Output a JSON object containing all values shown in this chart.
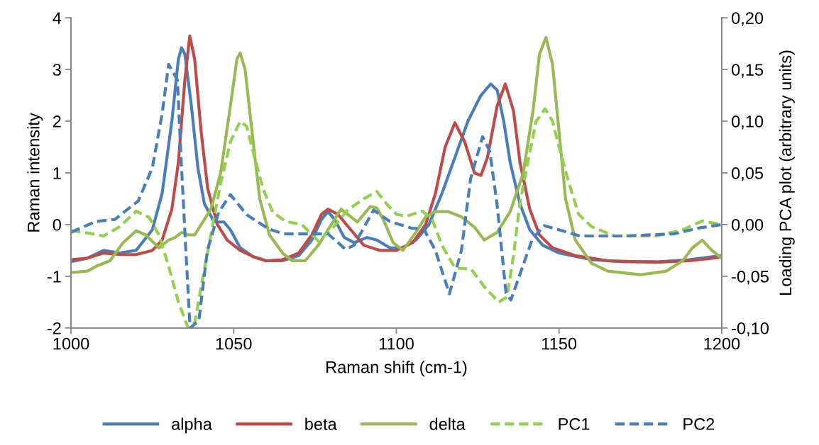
{
  "chart_data": {
    "type": "line",
    "xlabel": "Raman shift (cm-1)",
    "ylabel": "Raman intensity",
    "y2label": "Loading PCA plot (arbitrary units)",
    "xlim": [
      1000,
      1200
    ],
    "xticks": [
      1000,
      1050,
      1100,
      1150,
      1200
    ],
    "ylim": [
      -2,
      4
    ],
    "yticks": [
      -2,
      -1,
      0,
      1,
      2,
      3,
      4
    ],
    "y2lim": [
      -0.1,
      0.2
    ],
    "y2ticks": [
      {
        "value": -0.1,
        "label": "-0,10"
      },
      {
        "value": -0.05,
        "label": "-0,05"
      },
      {
        "value": 0,
        "label": "0,00"
      },
      {
        "value": 0.05,
        "label": "0,05"
      },
      {
        "value": 0.1,
        "label": "0,10"
      },
      {
        "value": 0.15,
        "label": "0,15"
      },
      {
        "value": 0.2,
        "label": "0,20"
      }
    ],
    "grid": false,
    "legend": "bottom",
    "series": [
      {
        "name": "alpha",
        "color": "#4a7ebb",
        "line_style": "solid",
        "x": [
          1000,
          1005,
          1010,
          1015,
          1020,
          1025,
          1028,
          1031,
          1033,
          1034,
          1035,
          1037,
          1039,
          1041,
          1044,
          1047,
          1049,
          1052,
          1056,
          1060,
          1065,
          1070,
          1074,
          1077,
          1079,
          1081,
          1084,
          1087,
          1091,
          1094,
          1098,
          1102,
          1106,
          1110,
          1114,
          1118,
          1122,
          1126,
          1129,
          1131,
          1133,
          1135,
          1138,
          1141,
          1145,
          1150,
          1160,
          1170,
          1180,
          1190,
          1200
        ],
        "values": [
          -0.72,
          -0.65,
          -0.5,
          -0.55,
          -0.5,
          -0.1,
          0.6,
          2.0,
          3.2,
          3.42,
          3.3,
          2.3,
          1.1,
          0.4,
          0.05,
          0.05,
          -0.1,
          -0.45,
          -0.62,
          -0.7,
          -0.7,
          -0.6,
          -0.3,
          0.1,
          0.25,
          0.1,
          -0.25,
          -0.35,
          -0.25,
          -0.3,
          -0.45,
          -0.45,
          -0.3,
          0.0,
          0.6,
          1.3,
          2.0,
          2.5,
          2.72,
          2.6,
          2.0,
          1.2,
          0.4,
          -0.1,
          -0.4,
          -0.55,
          -0.68,
          -0.72,
          -0.72,
          -0.68,
          -0.6
        ]
      },
      {
        "name": "beta",
        "color": "#be4b48",
        "line_style": "solid",
        "x": [
          1000,
          1005,
          1010,
          1015,
          1020,
          1025,
          1028,
          1031,
          1033,
          1035,
          1036.5,
          1038,
          1040,
          1042,
          1045,
          1048,
          1052,
          1056,
          1060,
          1065,
          1070,
          1074,
          1077,
          1079,
          1082,
          1086,
          1090,
          1095,
          1100,
          1105,
          1109,
          1112,
          1115,
          1118,
          1121,
          1124,
          1126,
          1128,
          1131,
          1133.5,
          1136,
          1138,
          1141,
          1144,
          1148,
          1155,
          1165,
          1180,
          1190,
          1200
        ],
        "values": [
          -0.68,
          -0.65,
          -0.55,
          -0.58,
          -0.58,
          -0.5,
          -0.3,
          0.3,
          1.2,
          2.8,
          3.65,
          3.2,
          1.8,
          0.7,
          0.0,
          -0.3,
          -0.5,
          -0.62,
          -0.7,
          -0.68,
          -0.55,
          -0.2,
          0.2,
          0.3,
          0.2,
          -0.1,
          -0.4,
          -0.5,
          -0.5,
          -0.35,
          0.0,
          0.6,
          1.5,
          1.97,
          1.6,
          1.0,
          0.95,
          1.3,
          2.3,
          2.72,
          2.2,
          1.2,
          0.3,
          -0.2,
          -0.45,
          -0.6,
          -0.7,
          -0.73,
          -0.7,
          -0.63
        ]
      },
      {
        "name": "delta",
        "color": "#98b954",
        "line_style": "solid",
        "x": [
          1000,
          1005,
          1008,
          1012,
          1016,
          1020,
          1023,
          1027,
          1030,
          1032,
          1034,
          1036,
          1038,
          1040,
          1043,
          1046,
          1049,
          1051,
          1052,
          1053.5,
          1056,
          1058,
          1061,
          1065,
          1068,
          1072,
          1076,
          1080,
          1083,
          1086,
          1088,
          1092,
          1094,
          1096,
          1099,
          1102,
          1106,
          1109,
          1112,
          1116,
          1120,
          1124,
          1127,
          1131,
          1135,
          1139,
          1142,
          1144,
          1146,
          1148,
          1150,
          1152,
          1155,
          1160,
          1165,
          1175,
          1183,
          1188,
          1191,
          1194,
          1197,
          1200
        ],
        "values": [
          -0.93,
          -0.9,
          -0.8,
          -0.7,
          -0.35,
          -0.12,
          -0.2,
          -0.45,
          -0.3,
          -0.25,
          -0.15,
          -0.2,
          -0.2,
          0.0,
          0.3,
          1.0,
          2.3,
          3.2,
          3.32,
          3.0,
          1.6,
          0.5,
          -0.2,
          -0.55,
          -0.7,
          -0.7,
          -0.4,
          0.0,
          0.3,
          0.15,
          0.05,
          0.35,
          0.32,
          0.1,
          -0.35,
          -0.5,
          -0.15,
          0.15,
          0.25,
          0.25,
          0.15,
          -0.05,
          -0.3,
          -0.15,
          0.25,
          1.0,
          2.2,
          3.3,
          3.62,
          3.1,
          1.8,
          0.5,
          -0.3,
          -0.75,
          -0.9,
          -0.97,
          -0.9,
          -0.7,
          -0.45,
          -0.3,
          -0.5,
          -0.65
        ]
      },
      {
        "name": "PC1",
        "color": "#92d050",
        "line_style": "dashed",
        "axis": "y2",
        "x": [
          1000,
          1005,
          1010,
          1015,
          1020,
          1024,
          1027,
          1030,
          1033,
          1036,
          1038,
          1040,
          1043,
          1046,
          1049,
          1052,
          1054,
          1056,
          1059,
          1062,
          1066,
          1071,
          1076,
          1080,
          1085,
          1090,
          1094,
          1097,
          1100,
          1103,
          1108,
          1111,
          1114,
          1118,
          1123,
          1127,
          1131.5,
          1134,
          1136,
          1138,
          1141,
          1143,
          1145.7,
          1148,
          1150,
          1152.7,
          1156,
          1160,
          1167,
          1180,
          1188,
          1194,
          1200
        ],
        "values": [
          -0.006,
          -0.008,
          -0.011,
          -0.002,
          0.013,
          0.007,
          -0.01,
          -0.04,
          -0.075,
          -0.1,
          -0.095,
          -0.06,
          -0.01,
          0.04,
          0.08,
          0.1,
          0.095,
          0.07,
          0.035,
          0.012,
          0.003,
          0.0,
          -0.016,
          -0.005,
          0.014,
          0.025,
          0.032,
          0.02,
          0.01,
          0.008,
          0.013,
          0.005,
          -0.02,
          -0.042,
          -0.043,
          -0.06,
          -0.075,
          -0.07,
          -0.03,
          0.021,
          0.07,
          0.1,
          0.112,
          0.1,
          0.075,
          0.044,
          0.01,
          -0.002,
          -0.011,
          -0.011,
          -0.005,
          0.0035,
          0.0
        ]
      },
      {
        "name": "PC2",
        "color": "#4a7ebb",
        "line_style": "dashed",
        "axis": "y2",
        "x": [
          1000,
          1007.6,
          1013.5,
          1020.7,
          1025,
          1028,
          1030,
          1032.7,
          1033.8,
          1035.3,
          1036.6,
          1039.3,
          1041.9,
          1045.4,
          1049,
          1054,
          1060.6,
          1065.4,
          1079,
          1084.4,
          1087,
          1093,
          1098,
          1104.7,
          1108.4,
          1112,
          1116.3,
          1120,
          1122.8,
          1126.5,
          1128.7,
          1130.9,
          1133.7,
          1135.2,
          1138,
          1141.8,
          1145.5,
          1156.4,
          1170,
          1185.4,
          1192.6,
          1200
        ],
        "values": [
          -0.0075,
          0.003,
          0.005,
          0.023,
          0.055,
          0.107,
          0.155,
          0.14,
          0.066,
          -0.025,
          -0.1,
          -0.093,
          -0.025,
          0.012,
          0.029,
          0.0095,
          -0.004,
          -0.009,
          -0.009,
          -0.024,
          -0.02,
          0.014,
          0.003,
          -0.0035,
          -0.004,
          -0.025,
          -0.067,
          -0.025,
          0.044,
          0.085,
          0.071,
          0.021,
          -0.066,
          -0.073,
          -0.048,
          -0.014,
          -0.001,
          -0.011,
          -0.011,
          -0.009,
          -0.0035,
          0.0
        ]
      }
    ]
  }
}
